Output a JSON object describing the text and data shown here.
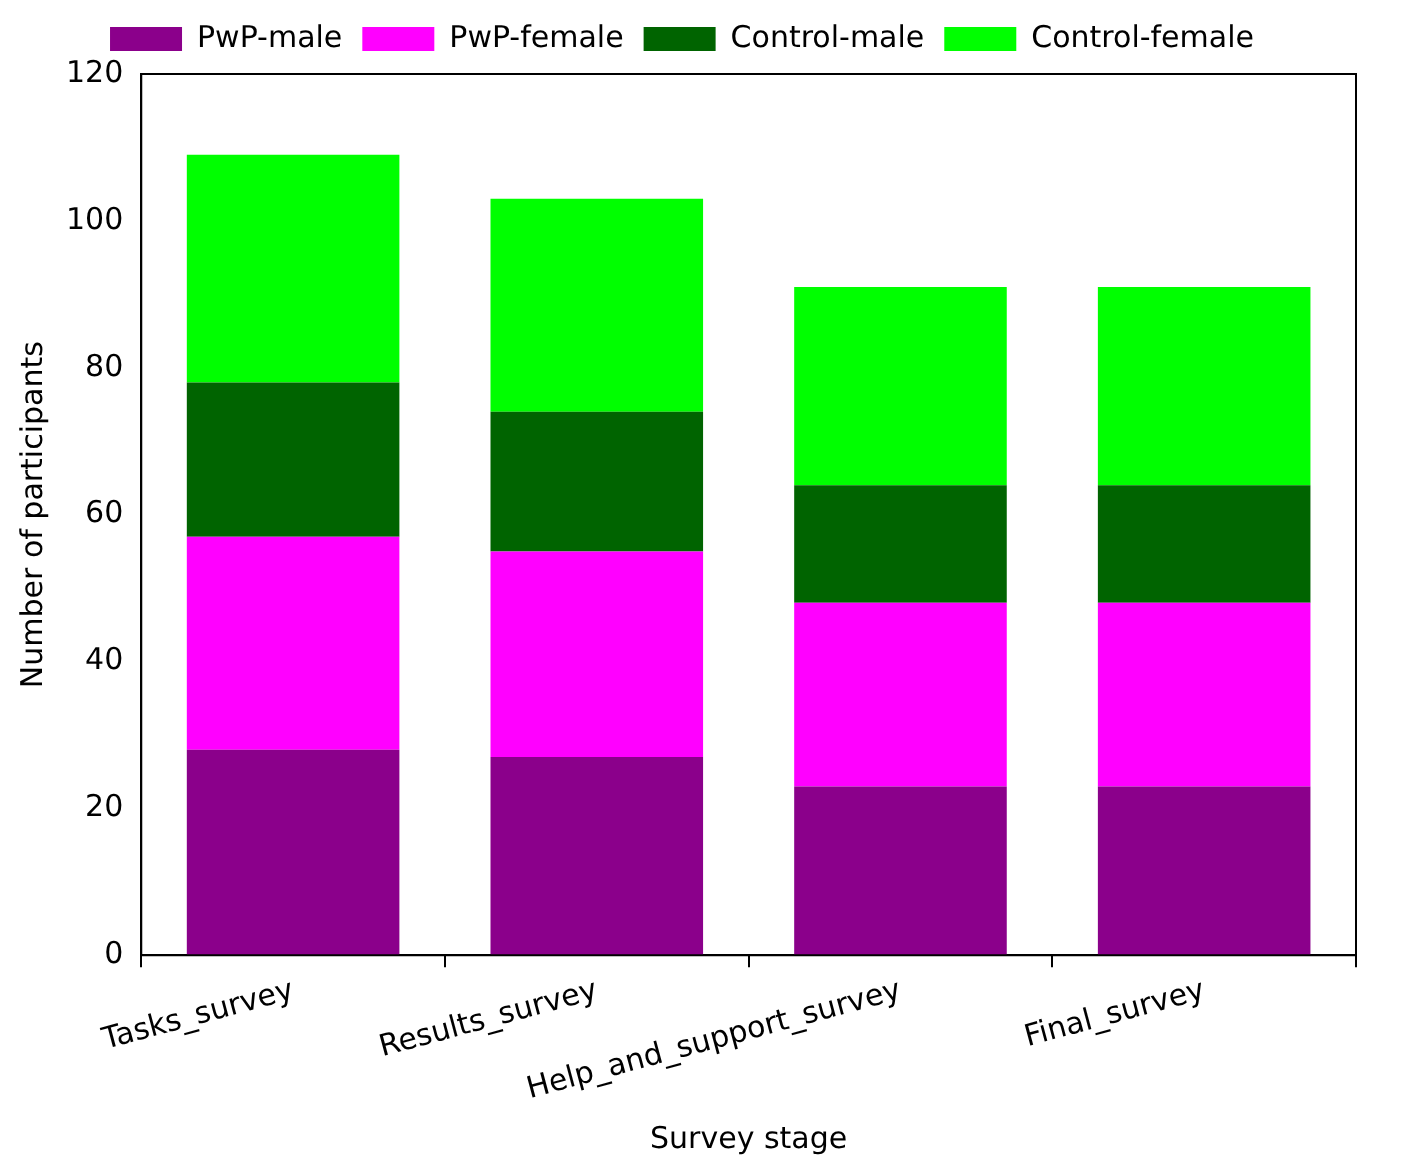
{
  "chart_data": {
    "type": "bar",
    "xlabel": "Survey stage",
    "ylabel": "Number of participants",
    "categories": [
      "Tasks_survey",
      "Results_survey",
      "Help_and_support_survey",
      "Final_survey"
    ],
    "stacked": true,
    "series": [
      {
        "name": "PwP-male",
        "color": "#8b008b",
        "values": [
          28,
          27,
          23,
          23
        ]
      },
      {
        "name": "PwP-female",
        "color": "#ff00ff",
        "values": [
          29,
          28,
          25,
          25
        ]
      },
      {
        "name": "Control-male",
        "color": "#006400",
        "values": [
          21,
          19,
          16,
          16
        ]
      },
      {
        "name": "Control-female",
        "color": "#00ff00",
        "values": [
          31,
          29,
          27,
          27
        ]
      }
    ],
    "ylim": [
      0,
      120
    ],
    "yticks": [
      0,
      20,
      40,
      60,
      80,
      100,
      120
    ],
    "grid": false,
    "legend": "top"
  }
}
